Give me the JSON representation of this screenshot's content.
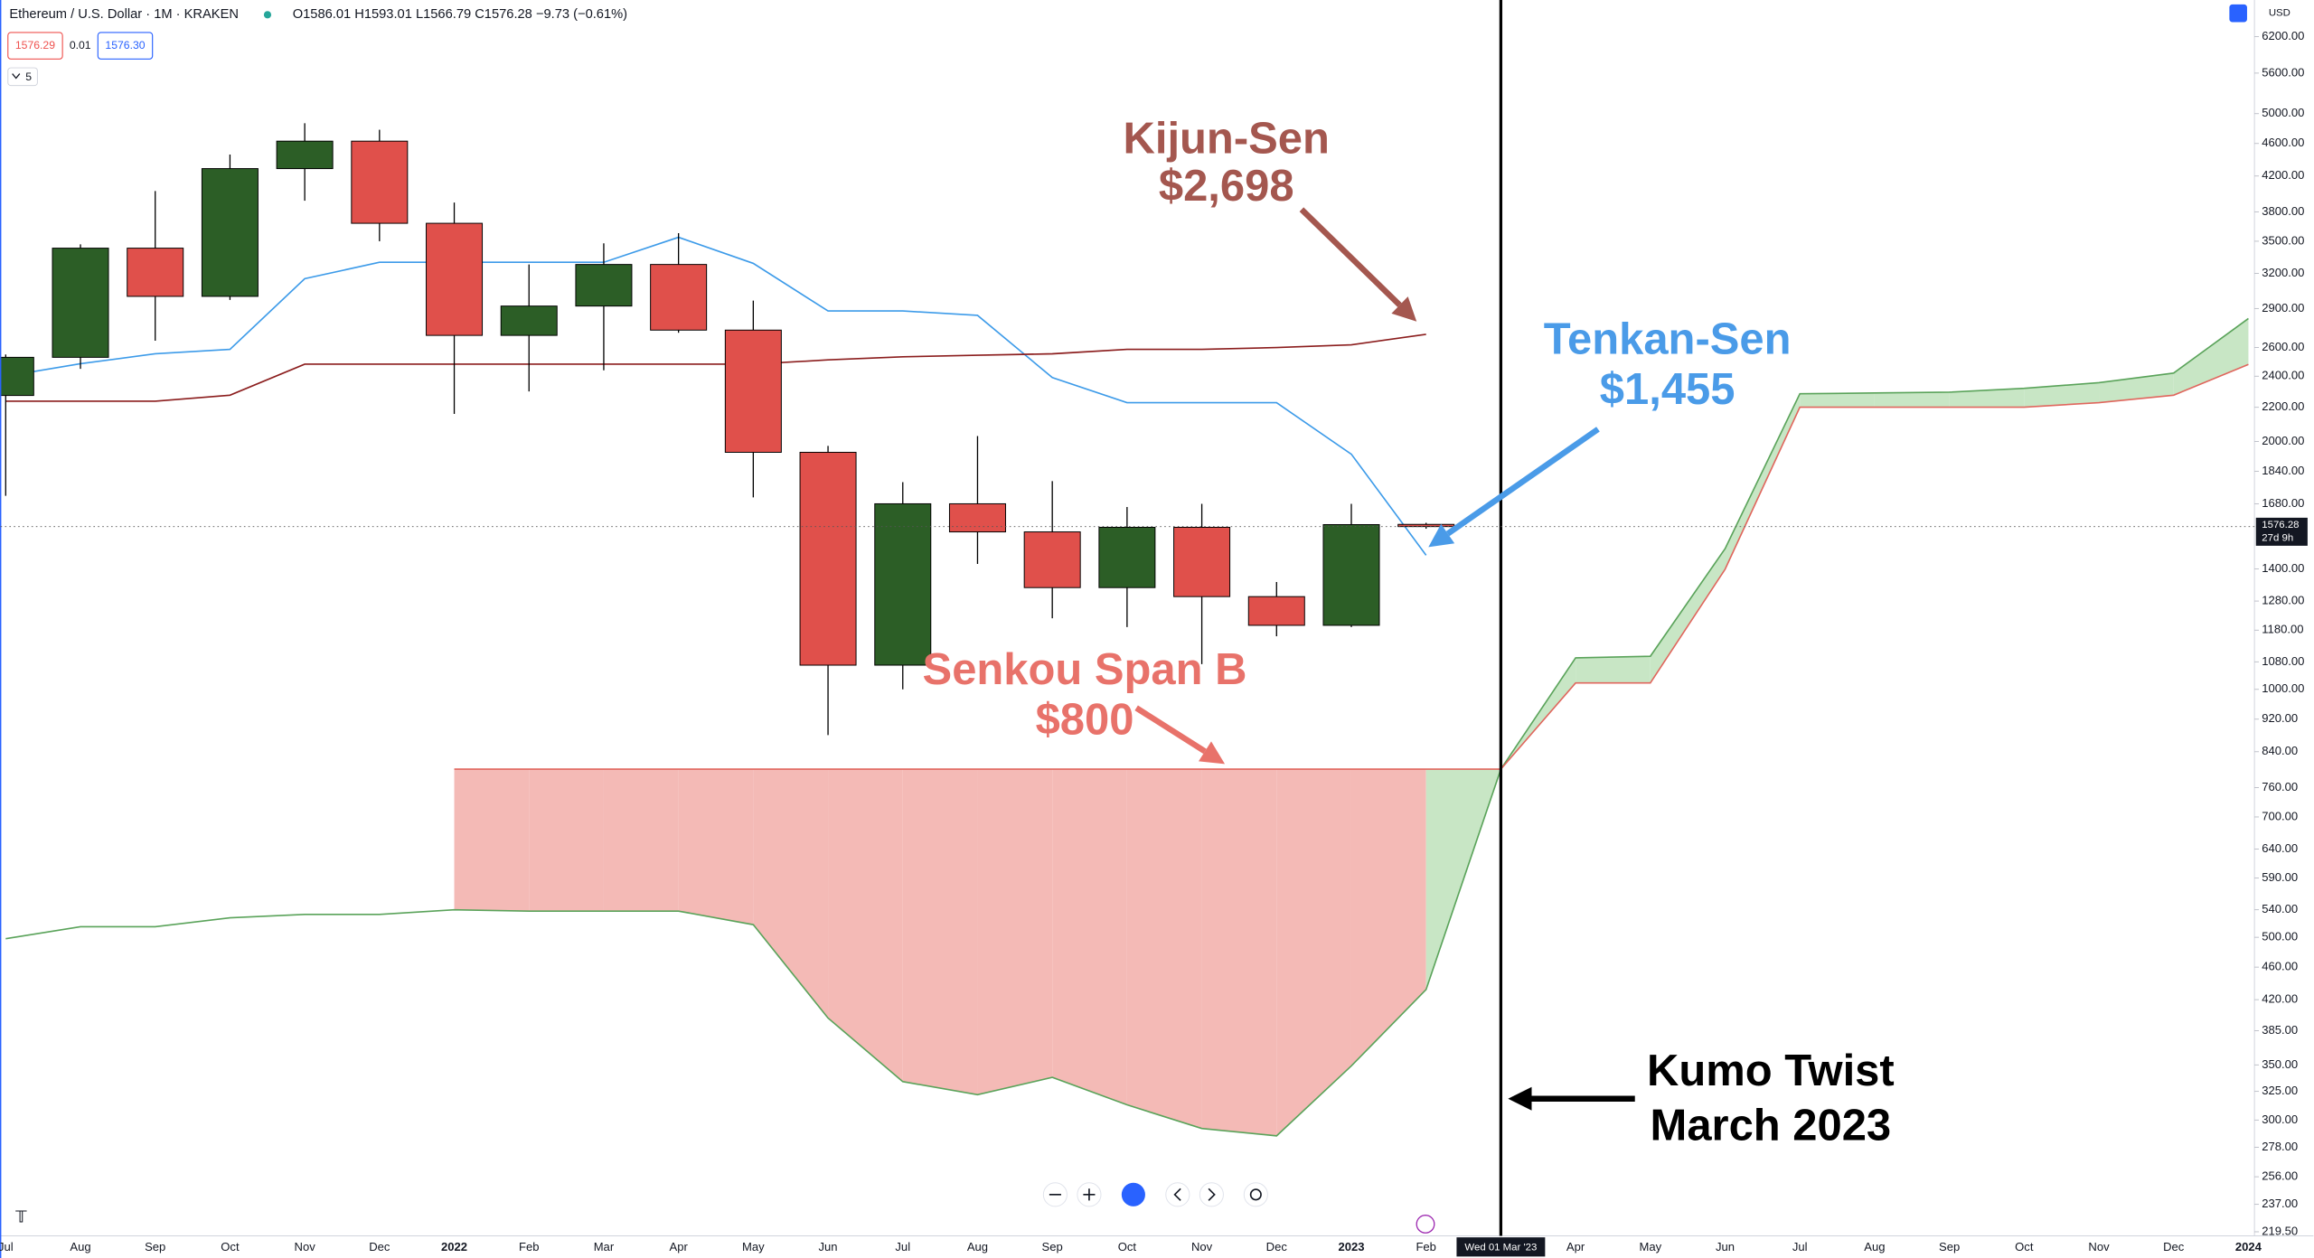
{
  "chart_data": {
    "type": "candlestick",
    "header": {
      "symbol": "Ethereum / U.S. Dollar · 1M · KRAKEN",
      "ohlc": "O1586.01 H1593.01 L1566.79 C1576.28 −9.73 (−0.61%)",
      "bid": "1576.29",
      "spread": "0.01",
      "ask": "1576.30",
      "indicators": "5",
      "currency": "USD"
    },
    "categories": [
      "Jul",
      "Aug",
      "Sep",
      "Oct",
      "Nov",
      "Dec",
      "2022",
      "Feb",
      "Mar",
      "Apr",
      "May",
      "Jun",
      "Jul",
      "Aug",
      "Sep",
      "Oct",
      "Nov",
      "Dec",
      "2023",
      "Feb",
      null,
      "Apr",
      "May",
      "Jun",
      "Jul",
      "Aug",
      "Sep",
      "Oct",
      "Nov",
      "Dec",
      "2024"
    ],
    "crosshair": {
      "index": 20,
      "label": "Wed 01 Mar '23"
    },
    "open": [
      2274,
      2530,
      3433,
      3000,
      4288,
      4630,
      3680,
      2690,
      2920,
      3280,
      2730,
      1940,
      1070,
      1680,
      1553,
      1329,
      1573,
      1296,
      1196,
      1586.01,
      null,
      null,
      null,
      null,
      null,
      null,
      null,
      null,
      null,
      null,
      null
    ],
    "high": [
      2550,
      3470,
      4027,
      4460,
      4868,
      4780,
      3900,
      3280,
      3480,
      3580,
      2965,
      1975,
      1785,
      2030,
      1790,
      1665,
      1680,
      1350,
      1680,
      1593.01,
      null,
      null,
      null,
      null,
      null,
      null,
      null,
      null,
      null,
      null,
      null
    ],
    "low": [
      1718,
      2450,
      2650,
      2970,
      3920,
      3500,
      2160,
      2300,
      2440,
      2710,
      1710,
      880,
      1000,
      1420,
      1220,
      1190,
      1073,
      1160,
      1190,
      1566.79,
      null,
      null,
      null,
      null,
      null,
      null,
      null,
      null,
      null,
      null,
      null
    ],
    "close": [
      2530,
      3433,
      3000,
      4288,
      4630,
      3680,
      2690,
      2920,
      3280,
      2730,
      1940,
      1070,
      1680,
      1553,
      1329,
      1573,
      1296,
      1196,
      1585,
      1576.28,
      null,
      null,
      null,
      null,
      null,
      null,
      null,
      null,
      null,
      null,
      null
    ],
    "up_color": "#2c5e26",
    "down_color": "#e0504b",
    "series": [
      {
        "color": "#3d9be9",
        "values": [
          2400,
          2485,
          2555,
          2587,
          3152,
          3300,
          3300,
          3300,
          3300,
          3539,
          3290,
          2880,
          2880,
          2845,
          2391,
          2229,
          2229,
          2229,
          1930,
          1455,
          null,
          null,
          null,
          null,
          null,
          null,
          null,
          null,
          null,
          null,
          null
        ]
      },
      {
        "color": "#8b1d1d",
        "values": [
          2238,
          2238,
          2238,
          2276,
          2482,
          2482,
          2482,
          2482,
          2482,
          2482,
          2482,
          2512,
          2534,
          2545,
          2555,
          2587,
          2587,
          2600,
          2620,
          2698,
          null,
          null,
          null,
          null,
          null,
          null,
          null,
          null,
          null,
          null,
          null
        ]
      },
      {
        "color": "#5aa35a",
        "values": [
          498,
          515,
          515,
          528,
          533,
          533,
          540,
          538,
          538,
          538,
          518,
          399,
          334,
          322,
          338,
          313,
          293,
          287,
          349,
          432,
          800,
          1092,
          1097,
          1482,
          2285,
          2290,
          2295,
          2320,
          2357,
          2421,
          2820
        ]
      },
      {
        "color": "#e0665d",
        "values": [
          null,
          null,
          null,
          null,
          null,
          null,
          800,
          800,
          800,
          800,
          800,
          800,
          800,
          800,
          800,
          800,
          800,
          800,
          800,
          800,
          800,
          1018,
          1018,
          1399,
          2201,
          2201,
          2201,
          2201,
          2229,
          2276,
          2480
        ]
      }
    ],
    "cloud_up_color": "#c8e6c5",
    "cloud_down_color": "#f4bab6",
    "log_scale": true,
    "ylim": [
      217,
      6870
    ],
    "yticks": [
      {
        "value": 6200,
        "label": "6200.00"
      },
      {
        "value": 5600,
        "label": "5600.00"
      },
      {
        "value": 5000,
        "label": "5000.00"
      },
      {
        "value": 4600,
        "label": "4600.00"
      },
      {
        "value": 4200,
        "label": "4200.00"
      },
      {
        "value": 3800,
        "label": "3800.00"
      },
      {
        "value": 3500,
        "label": "3500.00"
      },
      {
        "value": 3200,
        "label": "3200.00"
      },
      {
        "value": 2900,
        "label": "2900.00"
      },
      {
        "value": 2600,
        "label": "2600.00"
      },
      {
        "value": 2400,
        "label": "2400.00"
      },
      {
        "value": 2200,
        "label": "2200.00"
      },
      {
        "value": 2000,
        "label": "2000.00"
      },
      {
        "value": 1840,
        "label": "1840.00"
      },
      {
        "value": 1680,
        "label": "1680.00"
      },
      {
        "value": 1400,
        "label": "1400.00"
      },
      {
        "value": 1280,
        "label": "1280.00"
      },
      {
        "value": 1180,
        "label": "1180.00"
      },
      {
        "value": 1080,
        "label": "1080.00"
      },
      {
        "value": 1000,
        "label": "1000.00"
      },
      {
        "value": 920,
        "label": "920.00"
      },
      {
        "value": 840,
        "label": "840.00"
      },
      {
        "value": 760,
        "label": "760.00"
      },
      {
        "value": 700,
        "label": "700.00"
      },
      {
        "value": 640,
        "label": "640.00"
      },
      {
        "value": 590,
        "label": "590.00"
      },
      {
        "value": 540,
        "label": "540.00"
      },
      {
        "value": 500,
        "label": "500.00"
      },
      {
        "value": 460,
        "label": "460.00"
      },
      {
        "value": 420,
        "label": "420.00"
      },
      {
        "value": 385,
        "label": "385.00"
      },
      {
        "value": 350,
        "label": "350.00"
      },
      {
        "value": 325,
        "label": "325.00"
      },
      {
        "value": 300,
        "label": "300.00"
      },
      {
        "value": 278,
        "label": "278.00"
      },
      {
        "value": 256,
        "label": "256.00"
      },
      {
        "value": 237,
        "label": "237.00"
      },
      {
        "value": 219.5,
        "label": "219.50"
      }
    ],
    "last_price": 1576.28,
    "countdown": "27d 9h",
    "annotations": [
      {
        "lines": [
          "Kijun-Sen",
          "$2,698"
        ],
        "color": "#a4574f"
      },
      {
        "lines": [
          "Tenkan-Sen",
          "$1,455"
        ],
        "color": "#4a9be8"
      },
      {
        "lines": [
          "Senkou Span B",
          "$800"
        ],
        "color": "#e8726a"
      },
      {
        "lines": [
          "Kumo Twist",
          "March 2023"
        ],
        "color": "#000000"
      }
    ]
  }
}
